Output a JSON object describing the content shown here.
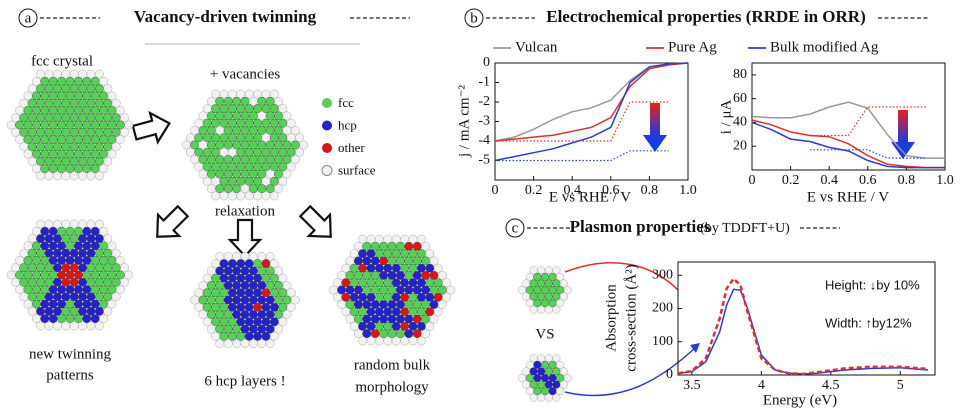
{
  "panels": {
    "a": {
      "label": "a",
      "title": "Vacancy-driven twinning",
      "captions": {
        "fcc": "fcc crystal",
        "vacancies": "+ vacancies",
        "relaxation": "relaxation",
        "twinning": [
          "new twinning",
          "patterns"
        ],
        "hcp": "6 hcp layers !",
        "random": [
          "random bulk",
          "morphology"
        ]
      },
      "legend": [
        {
          "label": "fcc",
          "color": "#55d155"
        },
        {
          "label": "hcp",
          "color": "#2323c8"
        },
        {
          "label": "other",
          "color": "#d81818"
        },
        {
          "label": "surface",
          "color": "#f2f2f2"
        }
      ]
    },
    "b": {
      "label": "b",
      "title": "Electrochemical properties (RRDE in ORR)"
    },
    "c": {
      "label": "c",
      "title": "Plasmon properties",
      "subtitle": "(by TDDFT+U)",
      "vs": "VS"
    }
  },
  "chart_data": [
    {
      "type": "line",
      "xlabel": "E vs RHE / V",
      "ylabel": "j / mA cm⁻²",
      "x": [
        0,
        0.1,
        0.2,
        0.3,
        0.4,
        0.5,
        0.6,
        0.7,
        0.8,
        0.9,
        1.0
      ],
      "xlim": [
        0,
        1
      ],
      "xticks": [
        0,
        0.2,
        0.4,
        0.6,
        0.8,
        {
          "value": 1,
          "label": "1.0"
        }
      ],
      "ylim": [
        -6,
        0
      ],
      "yticks": [
        0,
        -1,
        -2,
        -3,
        -4,
        -5
      ],
      "series": [
        {
          "name": "Vulcan",
          "color": "#999999",
          "style": "solid",
          "values": [
            -4,
            -3.8,
            -3.4,
            -2.9,
            -2.5,
            -2.3,
            -1.9,
            -0.9,
            -0.2,
            -0.05,
            0
          ]
        },
        {
          "name": "Pure Ag",
          "color": "#e0302a",
          "style": "solid",
          "values": [
            -4,
            -3.9,
            -3.8,
            -3.7,
            -3.5,
            -3.3,
            -2.8,
            -1.2,
            -0.3,
            -0.1,
            0
          ]
        },
        {
          "name": "Bulk modified Ag",
          "color": "#2a3bd0",
          "style": "solid",
          "values": [
            -5,
            -4.8,
            -4.6,
            -4.4,
            -4.1,
            -3.8,
            -3.3,
            -1.0,
            -0.2,
            -0.05,
            0
          ]
        },
        {
          "color": "#e0302a",
          "style": "dotted",
          "values": [
            -4,
            -4,
            -4,
            -4,
            -4,
            -4,
            -4,
            -2,
            -2,
            -2,
            null
          ]
        },
        {
          "color": "#2a3bd0",
          "style": "dotted",
          "values": [
            -5,
            -5,
            -5,
            -5,
            -5,
            -5,
            -5,
            -4.5,
            -4.5,
            -4.5,
            null
          ]
        }
      ]
    },
    {
      "type": "line",
      "xlabel": "E vs RHE / V",
      "ylabel": "i / μA",
      "x": [
        0,
        0.1,
        0.2,
        0.3,
        0.4,
        0.5,
        0.6,
        0.7,
        0.8,
        0.9,
        1.0
      ],
      "xlim": [
        0,
        1
      ],
      "xticks": [
        0,
        0.2,
        0.4,
        0.6,
        0.8,
        {
          "value": 1,
          "label": "1.0"
        }
      ],
      "ylim": [
        0,
        90
      ],
      "yticks": [
        20,
        40,
        60,
        80
      ],
      "series": [
        {
          "color": "#999999",
          "style": "solid",
          "values": [
            45,
            44,
            44,
            47,
            53,
            57,
            52,
            30,
            12,
            10,
            10
          ]
        },
        {
          "color": "#e0302a",
          "style": "solid",
          "values": [
            42,
            38,
            32,
            29,
            28,
            22,
            12,
            5,
            3,
            2,
            2
          ]
        },
        {
          "color": "#2a3bd0",
          "style": "solid",
          "values": [
            40,
            34,
            26,
            24,
            19,
            16,
            8,
            3,
            2,
            2,
            2
          ]
        },
        {
          "color": "#e0302a",
          "style": "dotted",
          "values": [
            null,
            null,
            null,
            29,
            29,
            29,
            53,
            53,
            53,
            53,
            null
          ]
        },
        {
          "color": "#2a3bd0",
          "style": "dotted",
          "values": [
            null,
            null,
            null,
            17,
            17,
            17,
            17,
            10,
            10,
            10,
            null
          ]
        }
      ]
    },
    {
      "type": "line",
      "xlabel": "Energy (eV)",
      "ylabel": [
        "Absorption",
        "cross-section (Å²)"
      ],
      "annotations": [
        "Height: ↓by 10%",
        "Width: ↑by12%"
      ],
      "x": [
        3.4,
        3.5,
        3.6,
        3.7,
        3.75,
        3.8,
        3.85,
        3.9,
        4.0,
        4.1,
        4.2,
        4.3,
        4.4,
        4.6,
        4.8,
        5.0,
        5.2
      ],
      "xlim": [
        3.4,
        5.25
      ],
      "xticks": [
        3.5,
        4,
        4.5,
        5
      ],
      "ylim": [
        0,
        340
      ],
      "yticks": [
        0,
        100,
        200,
        300
      ],
      "series": [
        {
          "color": "#2a3bd0",
          "style": "solid",
          "values": [
            5,
            10,
            40,
            130,
            210,
            258,
            255,
            200,
            60,
            15,
            5,
            3,
            5,
            15,
            20,
            22,
            15
          ]
        },
        {
          "color": "#e0302a",
          "style": "dashed",
          "values": [
            5,
            12,
            50,
            170,
            260,
            290,
            270,
            190,
            50,
            15,
            5,
            3,
            8,
            20,
            25,
            25,
            18
          ]
        }
      ]
    }
  ]
}
